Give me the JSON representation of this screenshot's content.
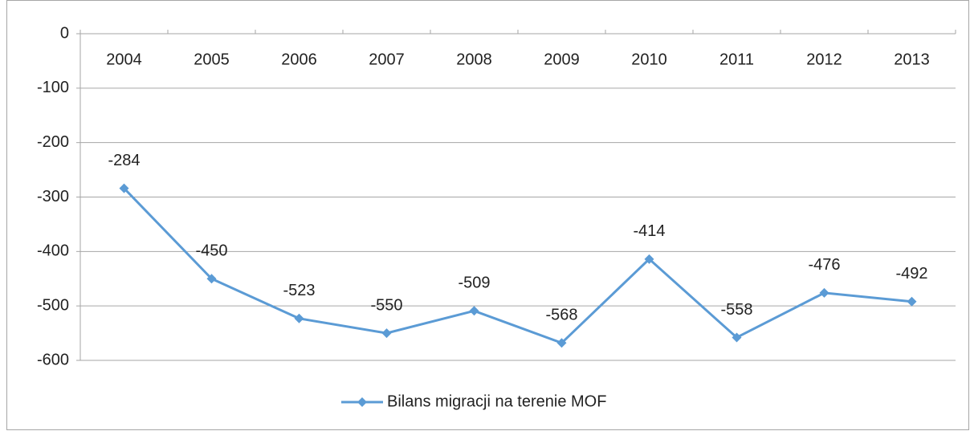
{
  "chart_data": {
    "type": "line",
    "categories": [
      "2004",
      "2005",
      "2006",
      "2007",
      "2008",
      "2009",
      "2010",
      "2011",
      "2012",
      "2013"
    ],
    "series": [
      {
        "name": "Bilans migracji na terenie MOF",
        "color": "#5b9bd5",
        "values": [
          -284,
          -450,
          -523,
          -550,
          -509,
          -568,
          -414,
          -558,
          -476,
          -492
        ]
      }
    ],
    "ylim": [
      -600,
      0
    ],
    "yticks": [
      0,
      -100,
      -200,
      -300,
      -400,
      -500,
      -600
    ],
    "grid": true,
    "legend": "bottom"
  }
}
